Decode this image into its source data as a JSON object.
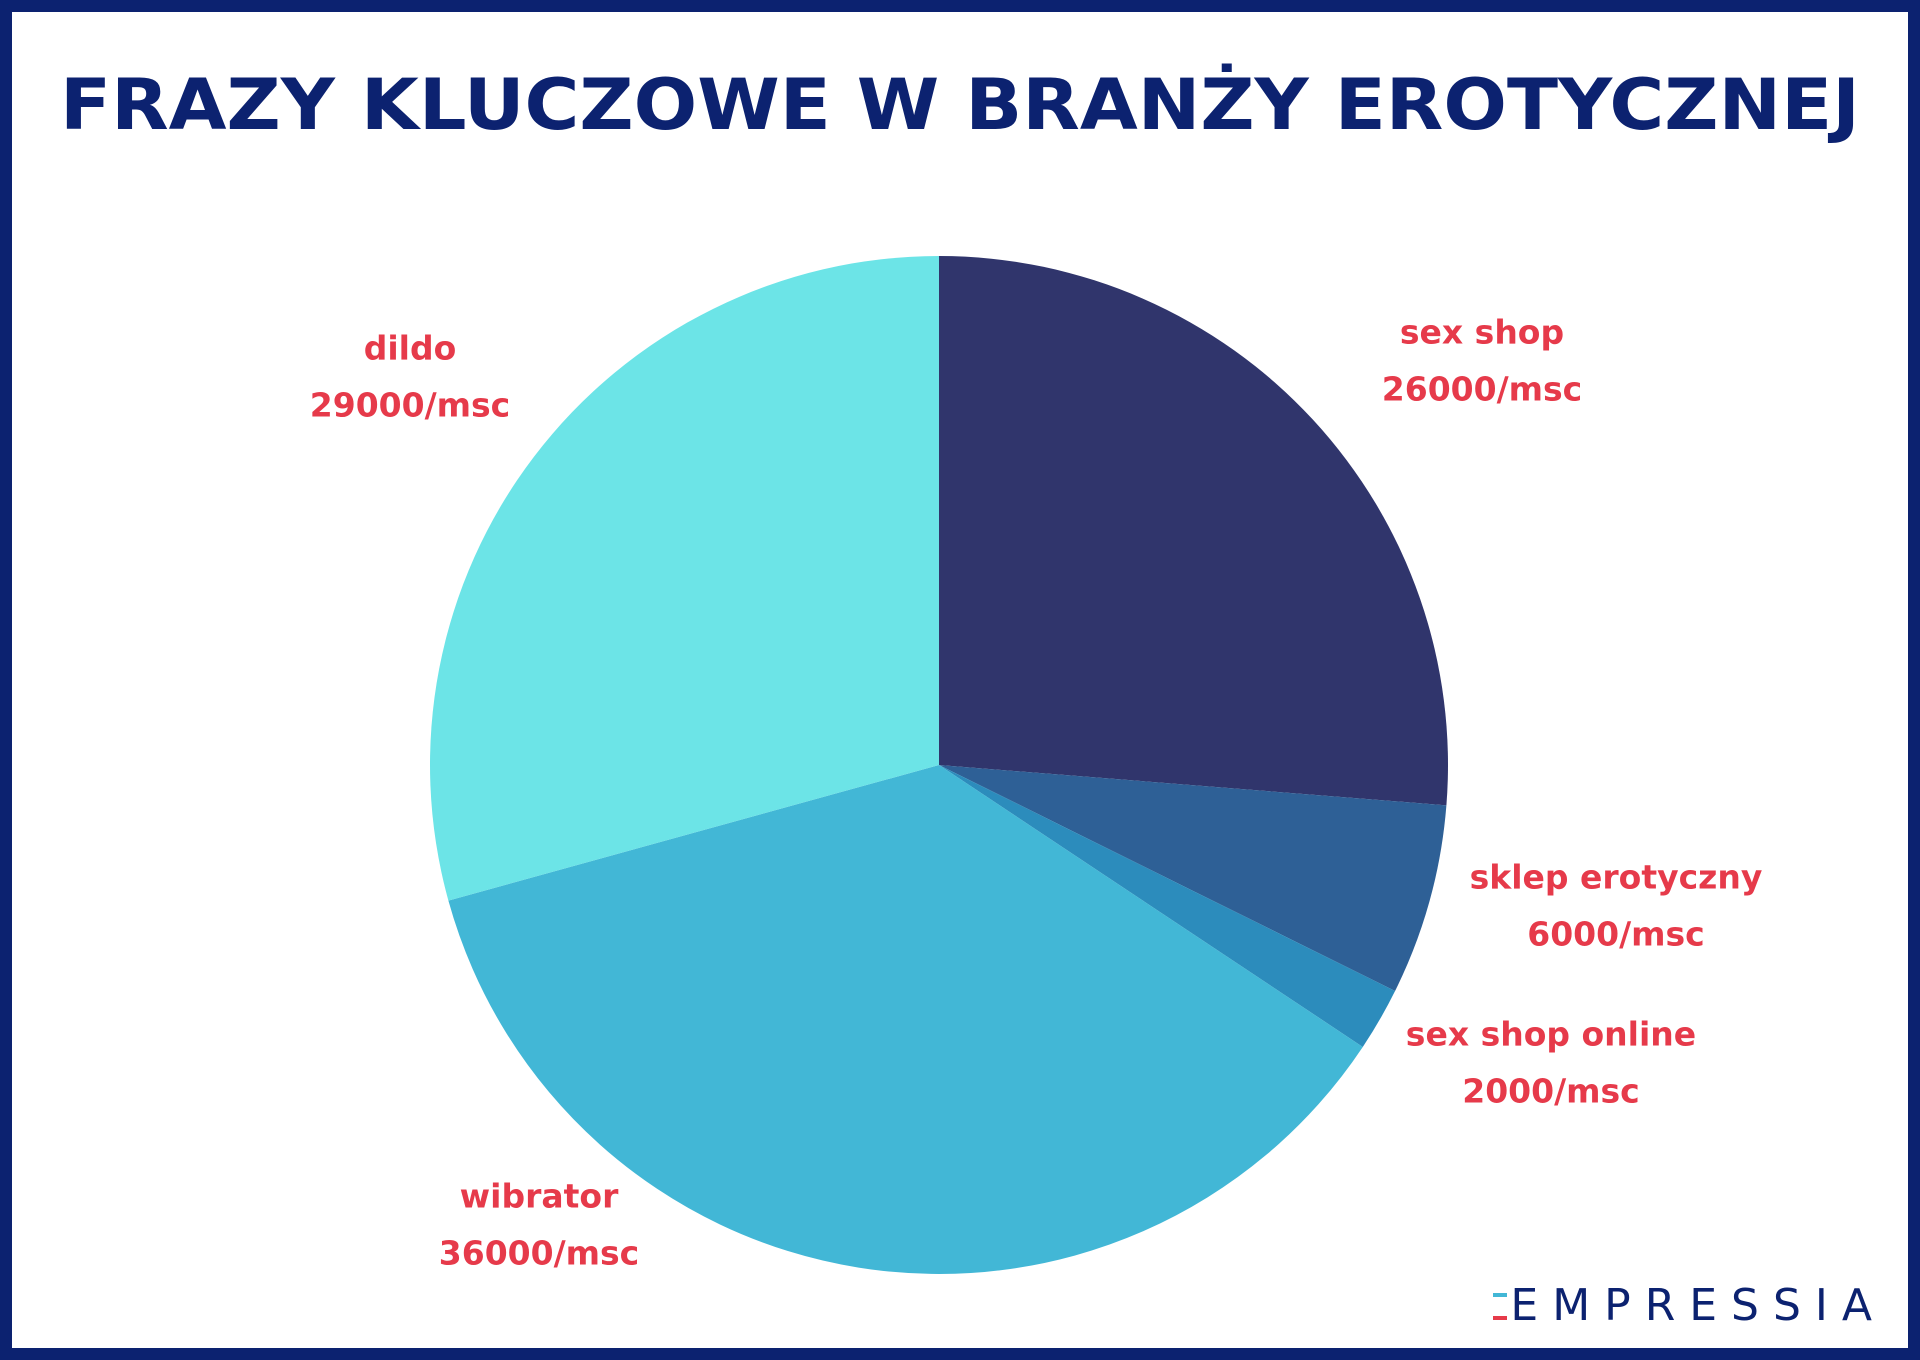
{
  "chart_data": {
    "type": "pie",
    "title": "FRAZY KLUCZOWE W BRANŻY EROTYCZNEJ",
    "categories": [
      "sex shop",
      "sklep erotyczny",
      "sex shop online",
      "wibrator",
      "dildo"
    ],
    "values": [
      26000,
      6000,
      2000,
      36000,
      29000
    ],
    "value_labels": [
      "26000/msc",
      "6000/msc",
      "2000/msc",
      "36000/msc",
      "29000/msc"
    ],
    "colors": [
      "#30356c",
      "#2e6096",
      "#2c8cbc",
      "#42b7d6",
      "#6ce4e7"
    ],
    "label_color": "#e63a4a"
  },
  "logo": "EMPRESSIA"
}
